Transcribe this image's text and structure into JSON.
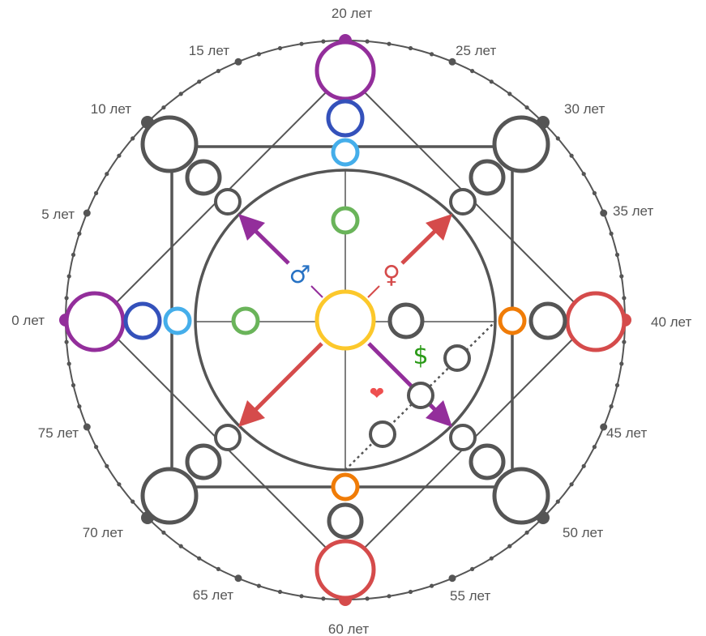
{
  "age_labels": [
    "0 лет",
    "5 лет",
    "10 лет",
    "15 лет",
    "20 лет",
    "25 лет",
    "30 лет",
    "35 лет",
    "40 лет",
    "45 лет",
    "50 лет",
    "55 лет",
    "60 лет",
    "65 лет",
    "70 лет",
    "75 лет"
  ],
  "symbols": {
    "male": "♂",
    "female": "♀",
    "money": "$",
    "heart": "❤"
  },
  "colors": {
    "purple": "#932e9b",
    "blue": "#3451bb",
    "light_blue": "#45aeea",
    "green": "#6ab45a",
    "yellow": "#fcc82b",
    "red": "#d54b4b",
    "orange": "#f07c07",
    "gray": "#555555",
    "male_symbol": "#2772c4",
    "female_symbol": "#d54b4b",
    "money_symbol": "#2a9a17",
    "heart_symbol": "#ee4f4f"
  }
}
